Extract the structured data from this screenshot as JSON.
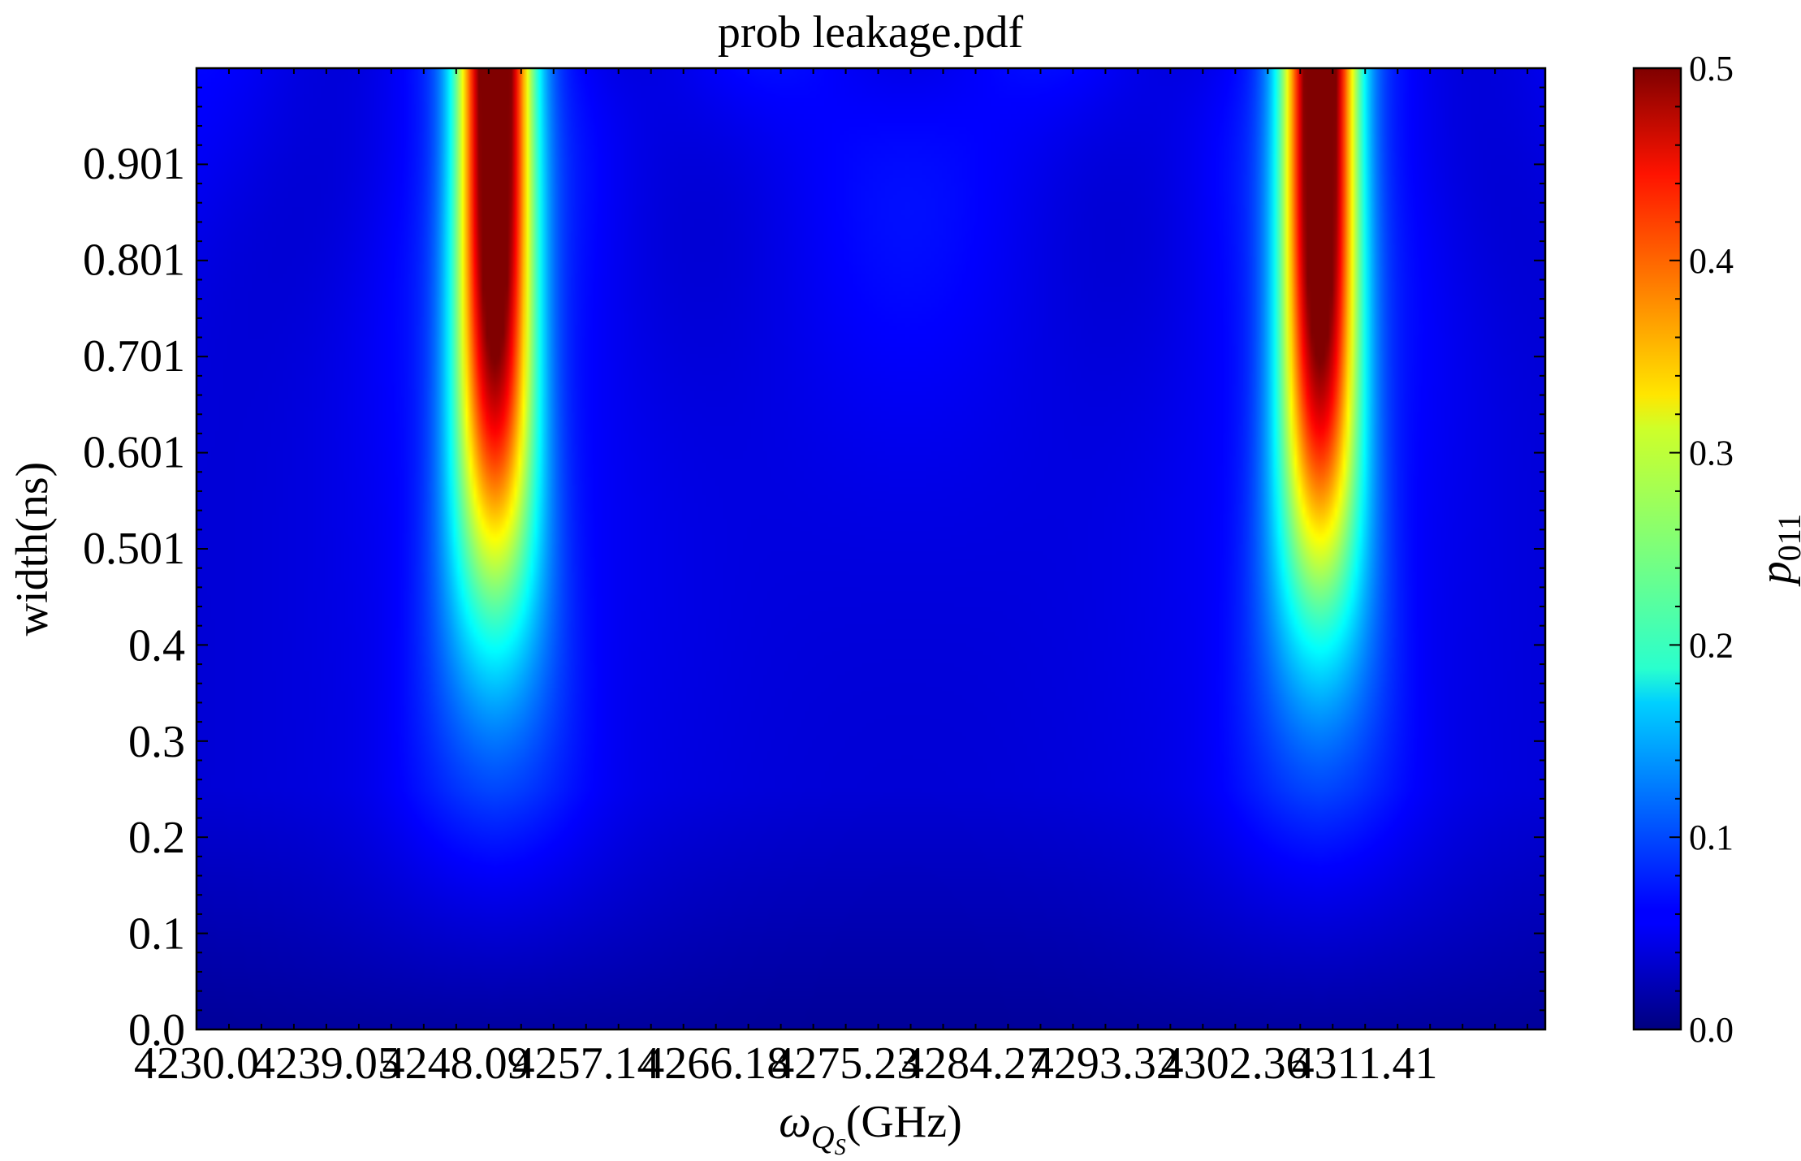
{
  "chart_data": {
    "type": "heatmap",
    "title": "prob leakage.pdf",
    "xlabel": {
      "symbol": "ω",
      "subscript": "Q",
      "subsubscript": "S",
      "unit": "(GHz)"
    },
    "ylabel": "width(ns)",
    "colorbar_label": {
      "symbol": "p",
      "subscript": "011"
    },
    "colormap": "jet",
    "x_range": [
      4230.0,
      4324.0
    ],
    "y_range": [
      0.0,
      1.0
    ],
    "x_ticks": [
      4230.0,
      4239.05,
      4248.09,
      4257.14,
      4266.18,
      4275.23,
      4284.27,
      4293.32,
      4302.36,
      4311.41
    ],
    "x_tick_labels": [
      "4230.0",
      "4239.05",
      "4248.09",
      "4257.14",
      "4266.18",
      "4275.23",
      "4284.27",
      "4293.32",
      "4302.36",
      "4311.41"
    ],
    "y_ticks": [
      0.0,
      0.1,
      0.2,
      0.3,
      0.4,
      0.501,
      0.601,
      0.701,
      0.801,
      0.901
    ],
    "y_tick_labels": [
      "0.0",
      "0.1",
      "0.2",
      "0.3",
      "0.4",
      "0.501",
      "0.601",
      "0.701",
      "0.801",
      "0.901"
    ],
    "colorbar_range": [
      0.0,
      0.5
    ],
    "colorbar_ticks": [
      0.0,
      0.1,
      0.2,
      0.3,
      0.4,
      0.5
    ],
    "colorbar_tick_labels": [
      "0.0",
      "0.1",
      "0.2",
      "0.3",
      "0.4",
      "0.5"
    ],
    "peaks": [
      {
        "center_x": 4250.8,
        "max_value": 0.5
      },
      {
        "center_x": 4308.3,
        "max_value": 0.5
      }
    ]
  }
}
